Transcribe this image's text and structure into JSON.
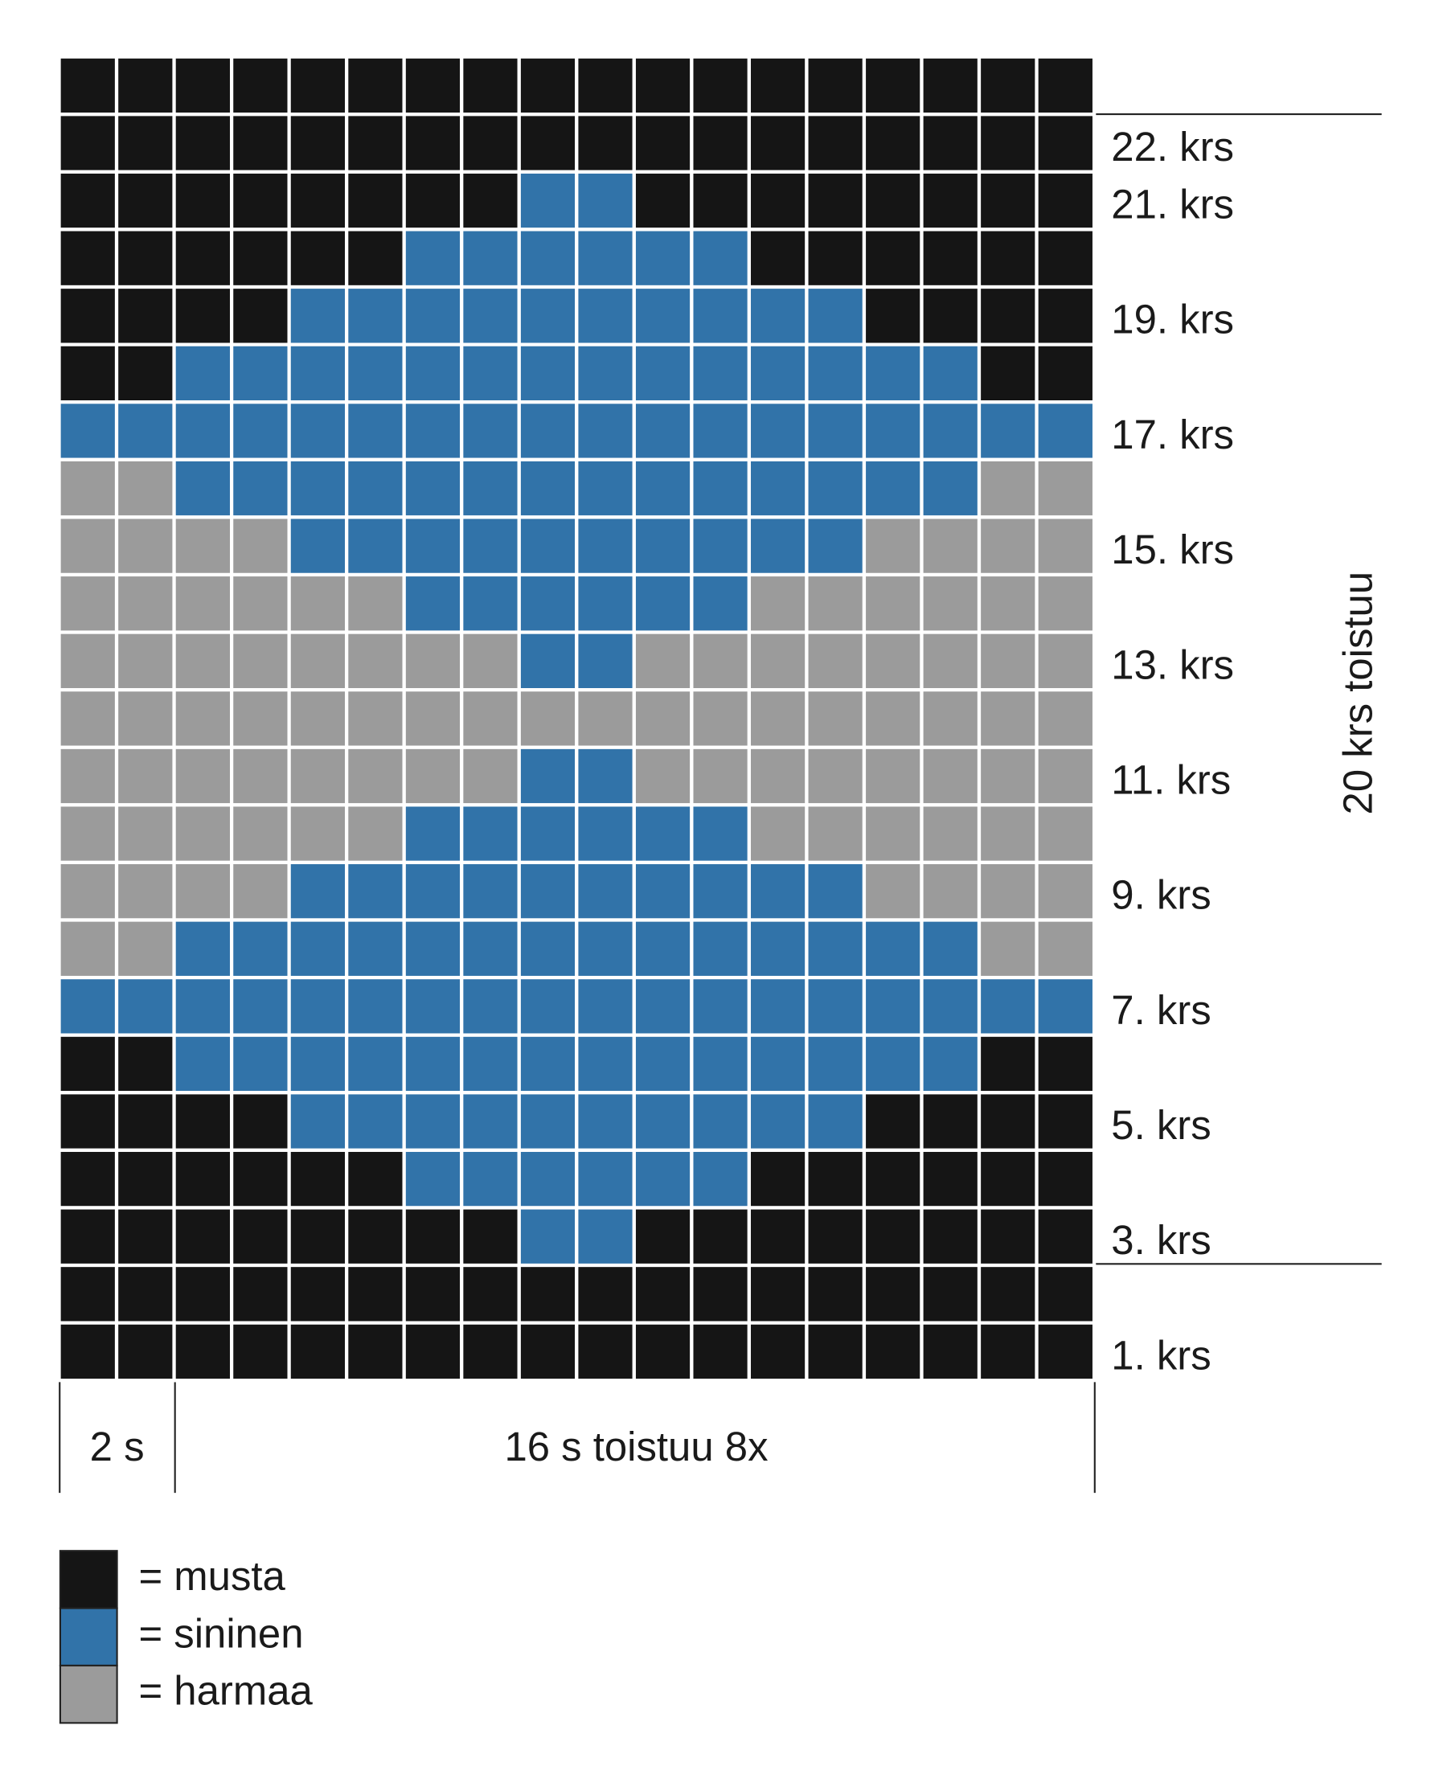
{
  "legend": [
    {
      "color": "#151515",
      "label": "= musta"
    },
    {
      "color": "#3173a9",
      "label": "= sininen"
    },
    {
      "color": "#9b9b9b",
      "label": "= harmaa"
    }
  ],
  "rows": [
    [
      0,
      0,
      0,
      0,
      0,
      0,
      0,
      0,
      0,
      0,
      0,
      0,
      0,
      0,
      0,
      0,
      0,
      0
    ],
    [
      0,
      0,
      0,
      0,
      0,
      0,
      0,
      0,
      0,
      0,
      0,
      0,
      0,
      0,
      0,
      0,
      0,
      0
    ],
    [
      0,
      0,
      0,
      0,
      0,
      0,
      0,
      0,
      1,
      1,
      0,
      0,
      0,
      0,
      0,
      0,
      0,
      0
    ],
    [
      0,
      0,
      0,
      0,
      0,
      0,
      1,
      1,
      1,
      1,
      1,
      1,
      0,
      0,
      0,
      0,
      0,
      0
    ],
    [
      0,
      0,
      0,
      0,
      1,
      1,
      1,
      1,
      1,
      1,
      1,
      1,
      1,
      1,
      0,
      0,
      0,
      0
    ],
    [
      0,
      0,
      1,
      1,
      1,
      1,
      1,
      1,
      1,
      1,
      1,
      1,
      1,
      1,
      1,
      1,
      0,
      0
    ],
    [
      1,
      1,
      1,
      1,
      1,
      1,
      1,
      1,
      1,
      1,
      1,
      1,
      1,
      1,
      1,
      1,
      1,
      1
    ],
    [
      2,
      2,
      1,
      1,
      1,
      1,
      1,
      1,
      1,
      1,
      1,
      1,
      1,
      1,
      1,
      1,
      2,
      2
    ],
    [
      2,
      2,
      2,
      2,
      1,
      1,
      1,
      1,
      1,
      1,
      1,
      1,
      1,
      1,
      2,
      2,
      2,
      2
    ],
    [
      2,
      2,
      2,
      2,
      2,
      2,
      1,
      1,
      1,
      1,
      1,
      1,
      2,
      2,
      2,
      2,
      2,
      2
    ],
    [
      2,
      2,
      2,
      2,
      2,
      2,
      2,
      2,
      1,
      1,
      2,
      2,
      2,
      2,
      2,
      2,
      2,
      2
    ],
    [
      2,
      2,
      2,
      2,
      2,
      2,
      2,
      2,
      2,
      2,
      2,
      2,
      2,
      2,
      2,
      2,
      2,
      2
    ],
    [
      2,
      2,
      2,
      2,
      2,
      2,
      2,
      2,
      1,
      1,
      2,
      2,
      2,
      2,
      2,
      2,
      2,
      2
    ],
    [
      2,
      2,
      2,
      2,
      2,
      2,
      1,
      1,
      1,
      1,
      1,
      1,
      2,
      2,
      2,
      2,
      2,
      2
    ],
    [
      2,
      2,
      2,
      2,
      1,
      1,
      1,
      1,
      1,
      1,
      1,
      1,
      1,
      1,
      2,
      2,
      2,
      2
    ],
    [
      2,
      2,
      1,
      1,
      1,
      1,
      1,
      1,
      1,
      1,
      1,
      1,
      1,
      1,
      1,
      1,
      2,
      2
    ],
    [
      1,
      1,
      1,
      1,
      1,
      1,
      1,
      1,
      1,
      1,
      1,
      1,
      1,
      1,
      1,
      1,
      1,
      1
    ],
    [
      0,
      0,
      1,
      1,
      1,
      1,
      1,
      1,
      1,
      1,
      1,
      1,
      1,
      1,
      1,
      1,
      0,
      0
    ],
    [
      0,
      0,
      0,
      0,
      1,
      1,
      1,
      1,
      1,
      1,
      1,
      1,
      1,
      1,
      0,
      0,
      0,
      0
    ],
    [
      0,
      0,
      0,
      0,
      0,
      0,
      1,
      1,
      1,
      1,
      1,
      1,
      0,
      0,
      0,
      0,
      0,
      0
    ],
    [
      0,
      0,
      0,
      0,
      0,
      0,
      0,
      0,
      1,
      1,
      0,
      0,
      0,
      0,
      0,
      0,
      0,
      0
    ],
    [
      0,
      0,
      0,
      0,
      0,
      0,
      0,
      0,
      0,
      0,
      0,
      0,
      0,
      0,
      0,
      0,
      0,
      0
    ],
    [
      0,
      0,
      0,
      0,
      0,
      0,
      0,
      0,
      0,
      0,
      0,
      0,
      0,
      0,
      0,
      0,
      0,
      0
    ]
  ],
  "row_labels": [
    null,
    "22. krs",
    "21. krs",
    null,
    "19. krs",
    null,
    "17. krs",
    null,
    "15. krs",
    null,
    "13. krs",
    null,
    "11. krs",
    null,
    "9. krs",
    null,
    "7. krs",
    null,
    "5. krs",
    null,
    "3. krs",
    null,
    "1. krs"
  ],
  "repeat_label": "20 krs toistuu",
  "bottom_labels": {
    "edge": "2 s",
    "repeat": "16 s toistuu 8x"
  }
}
